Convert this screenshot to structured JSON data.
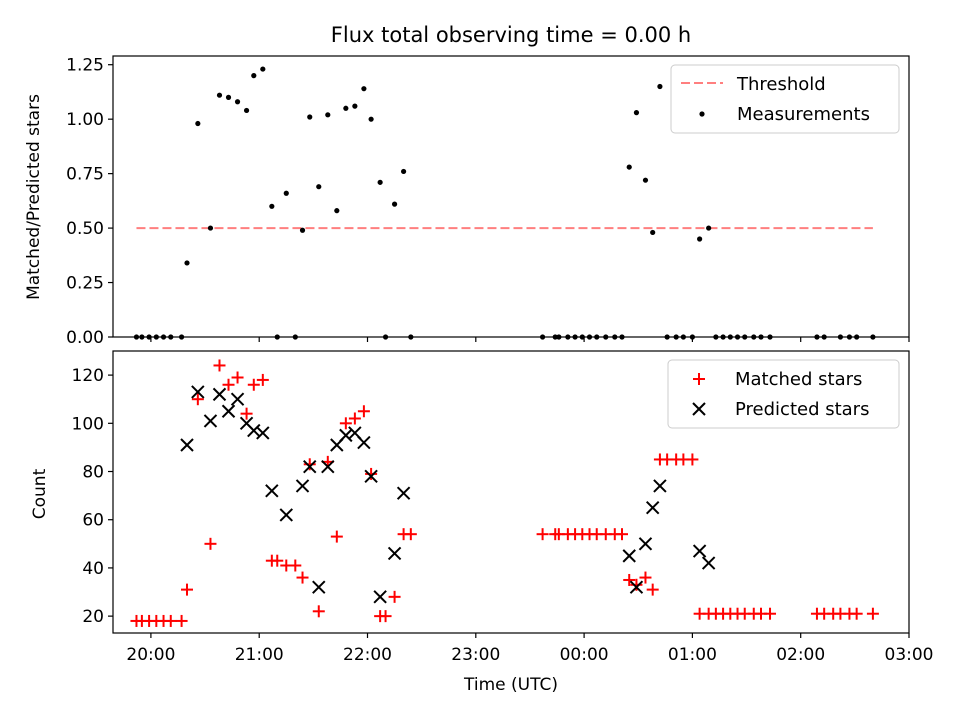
{
  "chart_data": [
    {
      "type": "scatter",
      "title": "Flux total observing time = 0.00 h",
      "ylabel": "Matched/Predicted stars",
      "ylim": [
        0,
        1.29
      ],
      "yticks": [
        0,
        0.25,
        0.5,
        0.75,
        1.0,
        1.25
      ],
      "ytick_labels": [
        "0.00",
        "0.25",
        "0.50",
        "0.75",
        "1.00",
        "1.25"
      ],
      "grid": false,
      "legend_position": "top-right",
      "threshold": {
        "name": "Threshold",
        "value": 0.5,
        "x_range": [
          "19:52",
          "02:40"
        ],
        "color": "#ff7f7f",
        "style": "dashed"
      },
      "series": [
        {
          "name": "Measurements",
          "marker": "dot",
          "color": "#000000",
          "points": [
            [
              "19:52",
              0.0
            ],
            [
              "19:55",
              0.0
            ],
            [
              "19:59",
              0.0
            ],
            [
              "20:03",
              0.0
            ],
            [
              "20:07",
              0.0
            ],
            [
              "20:11",
              0.0
            ],
            [
              "20:17",
              0.0
            ],
            [
              "20:20",
              0.34
            ],
            [
              "20:26",
              0.98
            ],
            [
              "20:33",
              0.5
            ],
            [
              "20:38",
              1.11
            ],
            [
              "20:43",
              1.1
            ],
            [
              "20:48",
              1.08
            ],
            [
              "20:53",
              1.04
            ],
            [
              "20:57",
              1.2
            ],
            [
              "21:02",
              1.23
            ],
            [
              "21:07",
              0.6
            ],
            [
              "21:10",
              0.0
            ],
            [
              "21:15",
              0.66
            ],
            [
              "21:20",
              0.0
            ],
            [
              "21:24",
              0.49
            ],
            [
              "21:28",
              1.01
            ],
            [
              "21:33",
              0.69
            ],
            [
              "21:38",
              1.02
            ],
            [
              "21:43",
              0.58
            ],
            [
              "21:48",
              1.05
            ],
            [
              "21:53",
              1.06
            ],
            [
              "21:58",
              1.14
            ],
            [
              "22:02",
              1.0
            ],
            [
              "22:07",
              0.71
            ],
            [
              "22:10",
              0.0
            ],
            [
              "22:15",
              0.61
            ],
            [
              "22:20",
              0.76
            ],
            [
              "22:24",
              0.0
            ],
            [
              "23:37",
              0.0
            ],
            [
              "23:44",
              0.0
            ],
            [
              "23:46",
              0.0
            ],
            [
              "23:51",
              0.0
            ],
            [
              "23:55",
              0.0
            ],
            [
              "23:59",
              0.0
            ],
            [
              "00:03",
              0.0
            ],
            [
              "00:07",
              0.0
            ],
            [
              "00:12",
              0.0
            ],
            [
              "00:17",
              0.0
            ],
            [
              "00:21",
              0.0
            ],
            [
              "00:25",
              0.78
            ],
            [
              "00:29",
              1.03
            ],
            [
              "00:34",
              0.72
            ],
            [
              "00:38",
              0.48
            ],
            [
              "00:42",
              1.15
            ],
            [
              "00:46",
              0.0
            ],
            [
              "00:51",
              0.0
            ],
            [
              "00:55",
              0.0
            ],
            [
              "01:00",
              0.0
            ],
            [
              "01:04",
              0.45
            ],
            [
              "01:09",
              0.5
            ],
            [
              "01:13",
              0.0
            ],
            [
              "01:17",
              0.0
            ],
            [
              "01:21",
              0.0
            ],
            [
              "01:25",
              0.0
            ],
            [
              "01:29",
              0.0
            ],
            [
              "01:34",
              0.0
            ],
            [
              "01:38",
              0.0
            ],
            [
              "01:43",
              0.0
            ],
            [
              "02:09",
              0.0
            ],
            [
              "02:13",
              0.0
            ],
            [
              "02:22",
              0.0
            ],
            [
              "02:27",
              0.0
            ],
            [
              "02:31",
              0.0
            ],
            [
              "02:40",
              0.0
            ]
          ]
        }
      ]
    },
    {
      "type": "scatter",
      "xlabel": "Time (UTC)",
      "ylabel": "Count",
      "ylim": [
        13,
        130
      ],
      "yticks": [
        20,
        40,
        60,
        80,
        100,
        120
      ],
      "ytick_labels": [
        "20",
        "40",
        "60",
        "80",
        "100",
        "120"
      ],
      "xlim": [
        "19:39",
        "03:00"
      ],
      "xticks": [
        "20:00",
        "21:00",
        "22:00",
        "23:00",
        "00:00",
        "01:00",
        "02:00",
        "03:00"
      ],
      "grid": false,
      "legend_position": "top-right",
      "series": [
        {
          "name": "Matched stars",
          "marker": "plus",
          "color": "#ff0000",
          "points": [
            [
              "19:52",
              18
            ],
            [
              "19:55",
              18
            ],
            [
              "19:59",
              18
            ],
            [
              "20:03",
              18
            ],
            [
              "20:07",
              18
            ],
            [
              "20:11",
              18
            ],
            [
              "20:17",
              18
            ],
            [
              "20:20",
              31
            ],
            [
              "20:26",
              110
            ],
            [
              "20:33",
              50
            ],
            [
              "20:38",
              124
            ],
            [
              "20:43",
              116
            ],
            [
              "20:48",
              119
            ],
            [
              "20:53",
              104
            ],
            [
              "20:57",
              116
            ],
            [
              "21:02",
              118
            ],
            [
              "21:07",
              43
            ],
            [
              "21:10",
              43
            ],
            [
              "21:15",
              41
            ],
            [
              "21:20",
              41
            ],
            [
              "21:24",
              36
            ],
            [
              "21:28",
              83
            ],
            [
              "21:33",
              22
            ],
            [
              "21:38",
              84
            ],
            [
              "21:43",
              53
            ],
            [
              "21:48",
              100
            ],
            [
              "21:53",
              102
            ],
            [
              "21:58",
              105
            ],
            [
              "22:02",
              79
            ],
            [
              "22:07",
              20
            ],
            [
              "22:10",
              20
            ],
            [
              "22:15",
              28
            ],
            [
              "22:20",
              54
            ],
            [
              "22:24",
              54
            ],
            [
              "23:37",
              54
            ],
            [
              "23:44",
              54
            ],
            [
              "23:46",
              54
            ],
            [
              "23:51",
              54
            ],
            [
              "23:55",
              54
            ],
            [
              "23:59",
              54
            ],
            [
              "00:03",
              54
            ],
            [
              "00:07",
              54
            ],
            [
              "00:12",
              54
            ],
            [
              "00:17",
              54
            ],
            [
              "00:21",
              54
            ],
            [
              "00:25",
              35
            ],
            [
              "00:29",
              33
            ],
            [
              "00:34",
              36
            ],
            [
              "00:38",
              31
            ],
            [
              "00:42",
              85
            ],
            [
              "00:46",
              85
            ],
            [
              "00:51",
              85
            ],
            [
              "00:55",
              85
            ],
            [
              "01:00",
              85
            ],
            [
              "01:04",
              21
            ],
            [
              "01:09",
              21
            ],
            [
              "01:13",
              21
            ],
            [
              "01:17",
              21
            ],
            [
              "01:21",
              21
            ],
            [
              "01:25",
              21
            ],
            [
              "01:29",
              21
            ],
            [
              "01:34",
              21
            ],
            [
              "01:38",
              21
            ],
            [
              "01:43",
              21
            ],
            [
              "02:09",
              21
            ],
            [
              "02:13",
              21
            ],
            [
              "02:18",
              21
            ],
            [
              "02:22",
              21
            ],
            [
              "02:27",
              21
            ],
            [
              "02:31",
              21
            ],
            [
              "02:40",
              21
            ]
          ]
        },
        {
          "name": "Predicted stars",
          "marker": "x",
          "color": "#000000",
          "points": [
            [
              "20:20",
              91
            ],
            [
              "20:26",
              113
            ],
            [
              "20:33",
              101
            ],
            [
              "20:38",
              112
            ],
            [
              "20:43",
              105
            ],
            [
              "20:48",
              110
            ],
            [
              "20:53",
              100
            ],
            [
              "20:57",
              97
            ],
            [
              "21:02",
              96
            ],
            [
              "21:07",
              72
            ],
            [
              "21:15",
              62
            ],
            [
              "21:24",
              74
            ],
            [
              "21:28",
              82
            ],
            [
              "21:33",
              32
            ],
            [
              "21:38",
              82
            ],
            [
              "21:43",
              91
            ],
            [
              "21:48",
              95
            ],
            [
              "21:53",
              96
            ],
            [
              "21:58",
              92
            ],
            [
              "22:02",
              78
            ],
            [
              "22:07",
              28
            ],
            [
              "22:15",
              46
            ],
            [
              "22:20",
              71
            ],
            [
              "00:25",
              45
            ],
            [
              "00:29",
              32
            ],
            [
              "00:34",
              50
            ],
            [
              "00:38",
              65
            ],
            [
              "00:42",
              74
            ],
            [
              "01:04",
              47
            ],
            [
              "01:09",
              42
            ]
          ]
        }
      ]
    }
  ]
}
